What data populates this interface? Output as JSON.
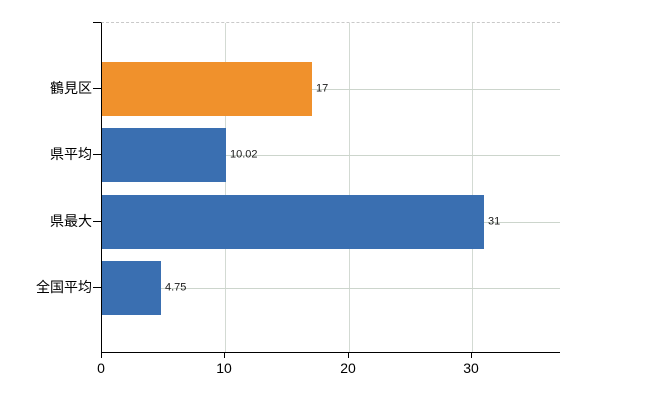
{
  "chart_data": {
    "type": "bar",
    "orientation": "horizontal",
    "title": "",
    "xlabel": "",
    "ylabel": "",
    "categories": [
      "鶴見区",
      "県平均",
      "県最大",
      "全国平均"
    ],
    "values": [
      17,
      10.02,
      31,
      4.75
    ],
    "value_labels": [
      "17",
      "10.02",
      "31",
      "4.75"
    ],
    "bar_colors": [
      "#f0912c",
      "#3a6fb1",
      "#3a6fb1",
      "#3a6fb1"
    ],
    "xlim": [
      0,
      37.2
    ],
    "x_ticks": [
      0,
      10,
      20,
      30
    ],
    "x_tick_labels": [
      "0",
      "10",
      "20",
      "30"
    ],
    "grid": true,
    "legend": "none",
    "colors": {
      "highlight_bar": "#f0912c",
      "default_bar": "#3a6fb1",
      "axis": "#000000",
      "gridline": "#ccd5cc",
      "frame_dashed": "#c9c9c9",
      "text": "#000000",
      "background": "#ffffff"
    }
  }
}
